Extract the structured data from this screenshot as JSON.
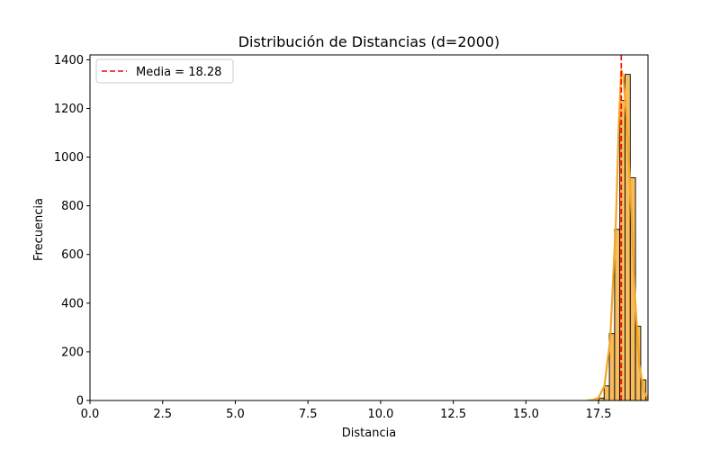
{
  "chart_data": {
    "type": "histogram",
    "title": "Distribución de Distancias (d=2000)",
    "xlabel": "Distancia",
    "ylabel": "Frecuencia",
    "xlim": [
      0.0,
      19.2
    ],
    "ylim": [
      0,
      1420
    ],
    "xticks": [
      "0.0",
      "2.5",
      "5.0",
      "7.5",
      "10.0",
      "12.5",
      "15.0",
      "17.5"
    ],
    "yticks": [
      "0",
      "200",
      "400",
      "600",
      "800",
      "1000",
      "1200",
      "1400"
    ],
    "bins": [
      {
        "x0": 17.33,
        "x1": 17.51,
        "count": 1
      },
      {
        "x0": 17.51,
        "x1": 17.69,
        "count": 10
      },
      {
        "x0": 17.69,
        "x1": 17.87,
        "count": 60
      },
      {
        "x0": 17.87,
        "x1": 18.05,
        "count": 275
      },
      {
        "x0": 18.05,
        "x1": 18.23,
        "count": 703
      },
      {
        "x0": 18.23,
        "x1": 18.41,
        "count": 1233
      },
      {
        "x0": 18.41,
        "x1": 18.59,
        "count": 1340
      },
      {
        "x0": 18.59,
        "x1": 18.77,
        "count": 915
      },
      {
        "x0": 18.77,
        "x1": 18.95,
        "count": 305
      },
      {
        "x0": 18.95,
        "x1": 19.13,
        "count": 85
      },
      {
        "x0": 19.13,
        "x1": 19.31,
        "count": 15
      }
    ],
    "bar_color": "#f5b041",
    "kde": {
      "color": "#f5a623",
      "points": [
        [
          17.1,
          0
        ],
        [
          17.3,
          2
        ],
        [
          17.5,
          12
        ],
        [
          17.7,
          60
        ],
        [
          17.9,
          250
        ],
        [
          18.1,
          750
        ],
        [
          18.2,
          1150
        ],
        [
          18.28,
          1360
        ],
        [
          18.35,
          1330
        ],
        [
          18.45,
          1180
        ],
        [
          18.6,
          850
        ],
        [
          18.75,
          430
        ],
        [
          18.9,
          150
        ],
        [
          19.05,
          40
        ],
        [
          19.2,
          8
        ]
      ]
    },
    "mean_line": {
      "value": 18.28,
      "color": "#ff0000",
      "label": "Media = 18.28"
    },
    "legend_position": "top-left",
    "grid": false
  }
}
